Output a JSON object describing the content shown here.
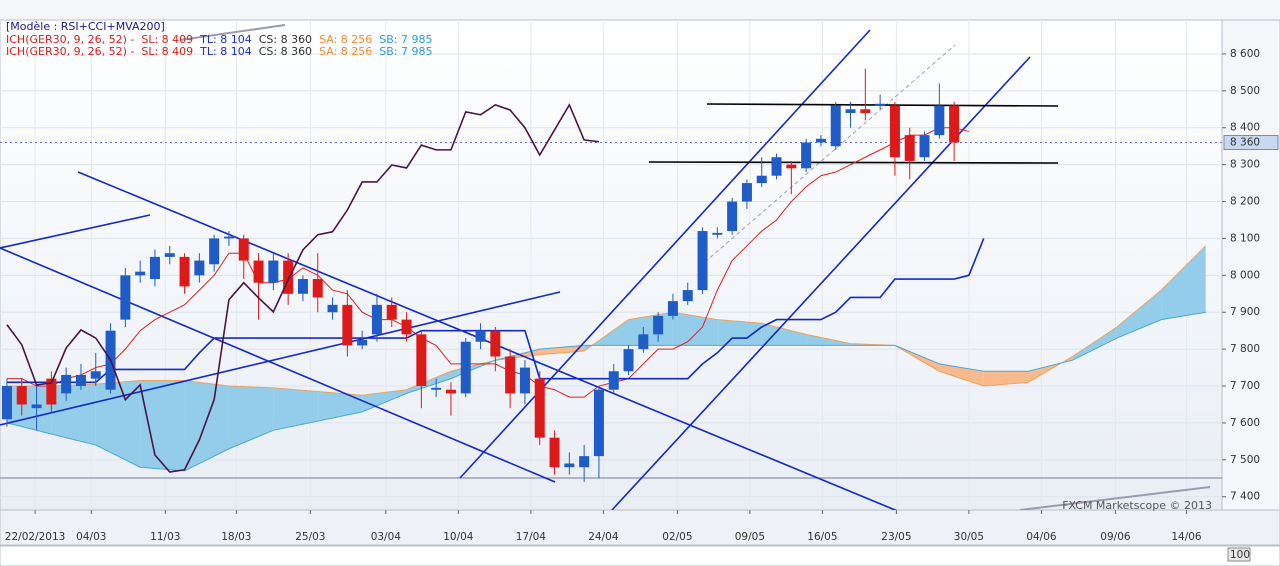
{
  "chart_data": {
    "type": "candlestick",
    "model": "[Modèle : RSI+CCI+MVA200]",
    "legend": [
      [
        {
          "text": "ICH(GER30, 9, 26, 52) -",
          "color": "#d81e1e"
        },
        {
          "text": "SL: 8 409",
          "color": "#d81e1e"
        },
        {
          "text": "TL: 8 104",
          "color": "#1f2fd0"
        },
        {
          "text": "CS: 8 360",
          "color": "#333333"
        },
        {
          "text": "SA: 8 256",
          "color": "#f08a30"
        },
        {
          "text": "SB: 7 985",
          "color": "#2a9fd8"
        }
      ],
      [
        {
          "text": "ICH(GER30, 9, 26, 52) -",
          "color": "#d81e1e"
        },
        {
          "text": "SL: 8 409",
          "color": "#d81e1e"
        },
        {
          "text": "TL: 8 104",
          "color": "#1f2fd0"
        },
        {
          "text": "CS: 8 360",
          "color": "#333333"
        },
        {
          "text": "SA: 8 256",
          "color": "#f08a30"
        },
        {
          "text": "SB: 7 985",
          "color": "#2a9fd8"
        }
      ]
    ],
    "watermark": "FXCM Marketscope © 2013",
    "up_color": "#1f5cc6",
    "down_color": "#dd1a1a",
    "xlim": [
      -0.47,
      82.1
    ],
    "ylim": [
      7364,
      8692
    ],
    "xticks": [
      {
        "value": 1.9,
        "label": "22/02/2013"
      },
      {
        "value": 5.7,
        "label": "04/03"
      },
      {
        "value": 10.7,
        "label": "11/03"
      },
      {
        "value": 15.5,
        "label": "18/03"
      },
      {
        "value": 20.5,
        "label": "25/03"
      },
      {
        "value": 25.6,
        "label": "03/04"
      },
      {
        "value": 30.5,
        "label": "10/04"
      },
      {
        "value": 35.4,
        "label": "17/04"
      },
      {
        "value": 40.3,
        "label": "24/04"
      },
      {
        "value": 45.3,
        "label": "02/05"
      },
      {
        "value": 50.2,
        "label": "09/05"
      },
      {
        "value": 55.1,
        "label": "16/05"
      },
      {
        "value": 60.1,
        "label": "23/05"
      },
      {
        "value": 65,
        "label": "30/05"
      },
      {
        "value": 69.9,
        "label": "04/06"
      },
      {
        "value": 74.9,
        "label": "09/06"
      },
      {
        "value": 79.7,
        "label": "14/06"
      }
    ],
    "yticks": [
      {
        "value": 7400,
        "label": "7 400"
      },
      {
        "value": 7500,
        "label": "7 500"
      },
      {
        "value": 7600,
        "label": "7 600"
      },
      {
        "value": 7700,
        "label": "7 700"
      },
      {
        "value": 7800,
        "label": "7 800"
      },
      {
        "value": 7900,
        "label": "7 900"
      },
      {
        "value": 8000,
        "label": "8 000"
      },
      {
        "value": 8100,
        "label": "8 100"
      },
      {
        "value": 8200,
        "label": "8 200"
      },
      {
        "value": 8300,
        "label": "8 300"
      },
      {
        "value": 8400,
        "label": "8 400"
      },
      {
        "value": 8500,
        "label": "8 500"
      },
      {
        "value": 8600,
        "label": "8 600"
      }
    ],
    "price_marker": {
      "value": 8360,
      "label": "8 360"
    },
    "lower_panel_label": 100,
    "open": [
      7610,
      7700,
      7640,
      7720,
      7680,
      7700,
      7720,
      7690,
      7880,
      8000,
      7990,
      8050,
      8050,
      8000,
      8030,
      8100,
      8100,
      8040,
      7980,
      8040,
      7950,
      7990,
      7900,
      7920,
      7810,
      7840,
      7920,
      7880,
      7840,
      7690,
      7690,
      7680,
      7820,
      7850,
      7780,
      7680,
      7720,
      7560,
      7480,
      7480,
      7510,
      7690,
      7740,
      7800,
      7840,
      7890,
      7930,
      7960,
      8110,
      8120,
      8200,
      8250,
      8270,
      8300,
      8290,
      8360,
      8350,
      8440,
      8450,
      8460,
      8460,
      8380,
      8320,
      8380,
      8460
    ],
    "high": [
      7720,
      7720,
      7700,
      7740,
      7750,
      7760,
      7790,
      7870,
      8020,
      8040,
      8070,
      8080,
      8060,
      8060,
      8110,
      8120,
      8110,
      8060,
      8060,
      8060,
      8000,
      8060,
      7940,
      7960,
      7850,
      7950,
      7940,
      7900,
      7850,
      7720,
      7710,
      7830,
      7870,
      7860,
      7800,
      7770,
      7740,
      7580,
      7520,
      7540,
      7700,
      7760,
      7810,
      7860,
      7900,
      7950,
      7980,
      8130,
      8130,
      8210,
      8260,
      8320,
      8330,
      8310,
      8370,
      8380,
      8470,
      8470,
      8560,
      8490,
      8470,
      8400,
      8390,
      8520,
      8470
    ],
    "low": [
      7590,
      7620,
      7580,
      7630,
      7660,
      7690,
      7700,
      7680,
      7860,
      7980,
      7970,
      8030,
      7950,
      7980,
      8010,
      8080,
      7990,
      7880,
      7960,
      7920,
      7930,
      7900,
      7880,
      7780,
      7800,
      7820,
      7860,
      7820,
      7640,
      7670,
      7620,
      7670,
      7800,
      7740,
      7640,
      7650,
      7540,
      7460,
      7460,
      7440,
      7450,
      7680,
      7730,
      7790,
      7820,
      7880,
      7920,
      7950,
      8100,
      8110,
      8180,
      8240,
      8260,
      8220,
      8280,
      8350,
      8340,
      8400,
      8420,
      8450,
      8270,
      8260,
      8310,
      8370,
      8310
    ],
    "close": [
      7700,
      7650,
      7650,
      7650,
      7730,
      7730,
      7740,
      7850,
      8000,
      8010,
      8050,
      8060,
      7970,
      8040,
      8100,
      8105,
      8040,
      7980,
      8040,
      7950,
      7990,
      7940,
      7920,
      7810,
      7825,
      7920,
      7880,
      7840,
      7700,
      7695,
      7680,
      7820,
      7850,
      7780,
      7680,
      7750,
      7560,
      7480,
      7490,
      7510,
      7690,
      7740,
      7800,
      7840,
      7890,
      7930,
      7960,
      8120,
      8115,
      8200,
      8250,
      8270,
      8320,
      8290,
      8360,
      8370,
      8460,
      8450,
      8440,
      8465,
      8320,
      8310,
      8380,
      8460,
      8360
    ],
    "oscillator": {
      "color": "#4a1446",
      "values": [
        7866,
        7812,
        7703,
        7708,
        7803,
        7852,
        7830,
        7771,
        7663,
        7703,
        7513,
        7467,
        7473,
        7554,
        7663,
        7934,
        7980,
        7939,
        7901,
        7988,
        8069,
        8110,
        8118,
        8177,
        8253,
        8253,
        8299,
        8291,
        8353,
        8340,
        8340,
        8443,
        8435,
        8462,
        8448,
        8400,
        8326,
        8394,
        8462,
        8367,
        8362
      ]
    },
    "tenkan": {
      "color": "#e02020",
      "values": [
        7720,
        7720,
        7700,
        7700,
        7720,
        7730,
        7750,
        7760,
        7800,
        7850,
        7880,
        7900,
        7920,
        7960,
        8000,
        8060,
        8060,
        7980,
        7980,
        7990,
        8020,
        8000,
        7960,
        7950,
        7900,
        7880,
        7880,
        7860,
        7830,
        7810,
        7760,
        7760,
        7760,
        7760,
        7740,
        7730,
        7700,
        7690,
        7670,
        7670,
        7700,
        7710,
        7720,
        7760,
        7800,
        7800,
        7820,
        7860,
        7960,
        8040,
        8080,
        8120,
        8150,
        8200,
        8240,
        8270,
        8280,
        8300,
        8320,
        8340,
        8360,
        8380,
        8380,
        8400,
        8400,
        8390
      ]
    },
    "kijun": {
      "color": "#1428c8",
      "values": [
        7710,
        7710,
        7710,
        7710,
        7710,
        7710,
        7710,
        7745,
        7745,
        7745,
        7745,
        7745,
        7745,
        7790,
        7830,
        7830,
        7830,
        7830,
        7830,
        7830,
        7830,
        7830,
        7830,
        7830,
        7830,
        7830,
        7830,
        7830,
        7850,
        7850,
        7850,
        7850,
        7850,
        7850,
        7850,
        7850,
        7720,
        7720,
        7720,
        7720,
        7720,
        7720,
        7720,
        7720,
        7720,
        7720,
        7720,
        7760,
        7790,
        7830,
        7830,
        7860,
        7880,
        7880,
        7880,
        7880,
        7900,
        7940,
        7940,
        7940,
        7990,
        7990,
        7990,
        7990,
        7990,
        8000,
        8100
      ]
    },
    "cloud": {
      "x": [
        0,
        3,
        6,
        9,
        12,
        15,
        18,
        21,
        24,
        27,
        30,
        33,
        36,
        39,
        42,
        45,
        48,
        51,
        54,
        57,
        60,
        63,
        66,
        69,
        72,
        75,
        78,
        81
      ],
      "span_a": [
        7700,
        7700,
        7705,
        7715,
        7715,
        7700,
        7695,
        7685,
        7675,
        7690,
        7740,
        7770,
        7785,
        7795,
        7880,
        7900,
        7880,
        7870,
        7840,
        7815,
        7810,
        7740,
        7700,
        7710,
        7780,
        7860,
        7960,
        8080
      ],
      "span_b": [
        7600,
        7570,
        7540,
        7480,
        7470,
        7530,
        7580,
        7605,
        7630,
        7680,
        7720,
        7770,
        7800,
        7810,
        7810,
        7810,
        7810,
        7810,
        7810,
        7810,
        7810,
        7760,
        7740,
        7740,
        7770,
        7830,
        7880,
        7900
      ],
      "up_fill": "#93cde9",
      "down_fill": "#f6ba8c",
      "a_color": "#f0a060",
      "b_color": "#4aa8d8"
    }
  }
}
